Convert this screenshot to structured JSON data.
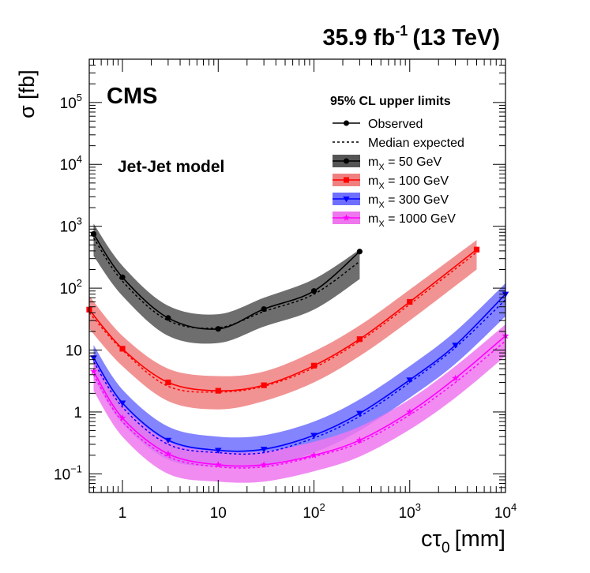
{
  "chart_data": {
    "type": "line",
    "title": "Jet-Jet model",
    "header_lumi": "35.9 fb",
    "header_lumi_exp": "-1",
    "header_energy": "(13 TeV)",
    "experiment": "CMS",
    "xlabel": "cτ",
    "xlabel_sub": "0",
    "xlabel_unit": "[mm]",
    "ylabel": "σ [fb]",
    "xscale": "log",
    "yscale": "log",
    "xlim": [
      0.45,
      10000
    ],
    "ylim": [
      0.05,
      500000
    ],
    "x_ticks": [
      {
        "value": 1,
        "label": "1",
        "exp": ""
      },
      {
        "value": 10,
        "label": "10",
        "exp": ""
      },
      {
        "value": 100,
        "label": "10",
        "exp": "2"
      },
      {
        "value": 1000,
        "label": "10",
        "exp": "3"
      },
      {
        "value": 10000,
        "label": "10",
        "exp": "4"
      }
    ],
    "y_ticks": [
      {
        "value": 0.1,
        "label": "10",
        "exp": "−1"
      },
      {
        "value": 1,
        "label": "1",
        "exp": ""
      },
      {
        "value": 10,
        "label": "10",
        "exp": ""
      },
      {
        "value": 100,
        "label": "10",
        "exp": "2"
      },
      {
        "value": 1000,
        "label": "10",
        "exp": "3"
      },
      {
        "value": 10000,
        "label": "10",
        "exp": "4"
      },
      {
        "value": 100000,
        "label": "10",
        "exp": "5"
      }
    ],
    "legend": {
      "title": "95% CL upper limits",
      "observed": "Observed",
      "expected": "Median expected",
      "position": "top-right"
    },
    "series": [
      {
        "name": "m_X = 50 GeV",
        "legend_main": "m",
        "legend_sub": "X",
        "legend_rest": " = 50 GeV",
        "color": "#000000",
        "band_color": "#555555",
        "marker": "circle",
        "x": [
          0.5,
          1,
          3,
          10,
          30,
          100,
          300
        ],
        "observed": [
          750,
          150,
          33,
          22,
          46,
          90,
          390
        ],
        "expected": [
          650,
          130,
          30,
          23,
          42,
          80,
          270
        ],
        "band_low": [
          330,
          75,
          17,
          13,
          24,
          45,
          140
        ],
        "band_high": [
          1100,
          230,
          52,
          38,
          70,
          140,
          420
        ]
      },
      {
        "name": "m_X = 100 GeV",
        "legend_main": "m",
        "legend_sub": "X",
        "legend_rest": " = 100 GeV",
        "color": "#ff0000",
        "band_color": "#f08080",
        "marker": "square",
        "x": [
          0.45,
          1,
          3,
          10,
          30,
          100,
          300,
          1000,
          5000
        ],
        "observed": [
          45,
          10.5,
          3.0,
          2.2,
          2.7,
          5.6,
          15,
          60,
          420
        ],
        "expected": [
          40,
          10,
          2.6,
          2.1,
          2.6,
          5.2,
          14,
          55,
          380
        ],
        "band_low": [
          22,
          5.5,
          1.5,
          1.1,
          1.5,
          3.0,
          8,
          30,
          200
        ],
        "band_high": [
          75,
          17,
          5.0,
          3.8,
          4.5,
          9.5,
          25,
          95,
          600
        ]
      },
      {
        "name": "m_X = 300 GeV",
        "legend_main": "m",
        "legend_sub": "X",
        "legend_rest": " = 300 GeV",
        "color": "#0000ff",
        "band_color": "#6f6fff",
        "marker": "triangle-down",
        "x": [
          0.5,
          1,
          3,
          10,
          30,
          100,
          300,
          1000,
          3000,
          10000
        ],
        "observed": [
          7.5,
          1.4,
          0.35,
          0.24,
          0.25,
          0.42,
          0.95,
          3.3,
          12,
          80
        ],
        "expected": [
          6.5,
          1.2,
          0.3,
          0.22,
          0.22,
          0.38,
          0.85,
          3.0,
          11,
          65
        ],
        "band_low": [
          3.5,
          0.65,
          0.17,
          0.13,
          0.13,
          0.22,
          0.5,
          1.7,
          6,
          35
        ],
        "band_high": [
          12,
          2.3,
          0.58,
          0.4,
          0.42,
          0.7,
          1.6,
          5.5,
          20,
          120
        ]
      },
      {
        "name": "m_X = 1000 GeV",
        "legend_main": "m",
        "legend_sub": "X",
        "legend_rest": " = 1000 GeV",
        "color": "#ff00ff",
        "band_color": "#ee77ee",
        "marker": "star",
        "x": [
          0.5,
          1,
          3,
          10,
          30,
          100,
          300,
          1000,
          3000,
          10000
        ],
        "observed": [
          4.5,
          0.8,
          0.21,
          0.14,
          0.14,
          0.2,
          0.35,
          1.0,
          3.5,
          17
        ],
        "expected": [
          4.0,
          0.7,
          0.19,
          0.13,
          0.13,
          0.19,
          0.32,
          0.9,
          3.0,
          14
        ],
        "band_low": [
          2.2,
          0.4,
          0.1,
          0.075,
          0.075,
          0.11,
          0.19,
          0.52,
          1.7,
          8
        ],
        "band_high": [
          7,
          1.3,
          0.33,
          0.23,
          0.23,
          0.33,
          0.58,
          1.6,
          5.5,
          26
        ]
      }
    ]
  }
}
